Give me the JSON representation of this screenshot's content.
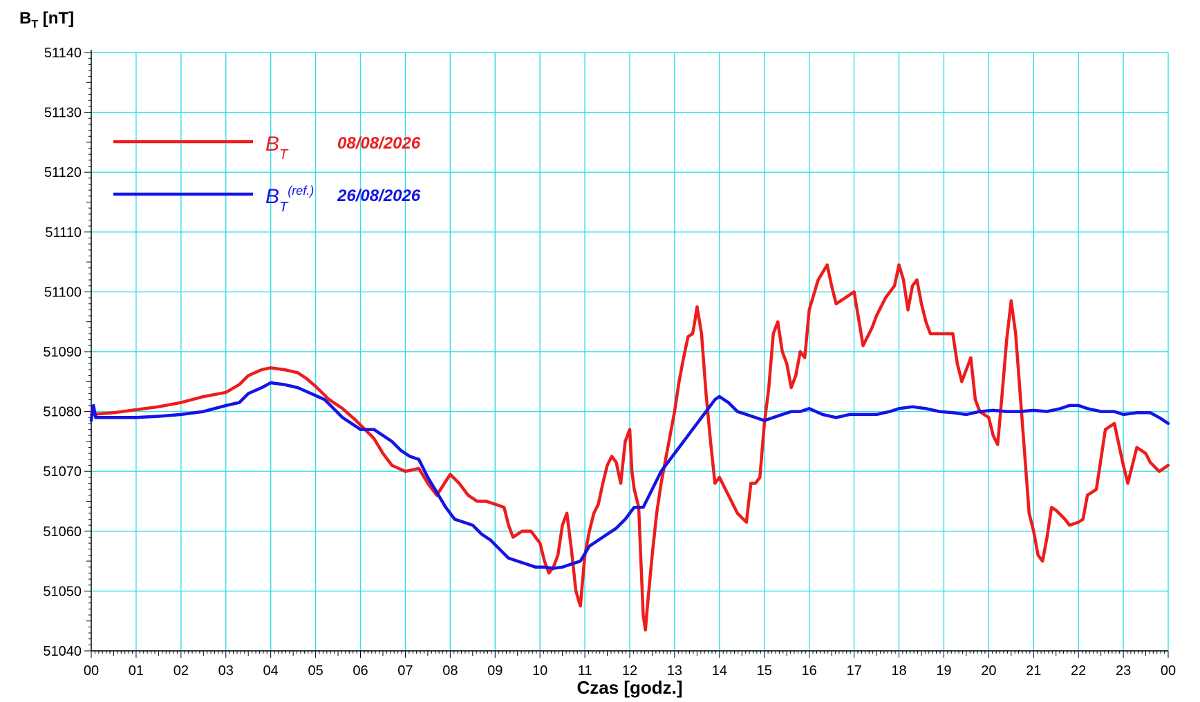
{
  "chart_data": {
    "type": "line",
    "ylabel_main": "B",
    "ylabel_sub": "T",
    "ylabel_unit": " [nT]",
    "xlabel": "Czas [godz.]",
    "xlim": [
      0,
      24
    ],
    "ylim": [
      51040,
      51140
    ],
    "y_ticks": [
      "51040",
      "51050",
      "51060",
      "51070",
      "51080",
      "51090",
      "51100",
      "51110",
      "51120",
      "51130",
      "51140"
    ],
    "x_ticks": [
      "00",
      "01",
      "02",
      "03",
      "04",
      "05",
      "06",
      "07",
      "08",
      "09",
      "10",
      "11",
      "12",
      "13",
      "14",
      "15",
      "16",
      "17",
      "18",
      "19",
      "20",
      "21",
      "22",
      "23",
      "00"
    ],
    "grid": true,
    "grid_color": "#33dde8",
    "legend_position": "top-left",
    "legend": [
      {
        "symbol": "B",
        "sub": "T",
        "sup": "",
        "date": "08/08/2026",
        "color": "#ee1c1c"
      },
      {
        "symbol": "B",
        "sub": "T",
        "sup": "(ref.)",
        "date": "26/08/2026",
        "color": "#1414e6"
      }
    ],
    "series": [
      {
        "color": "#ee1c1c",
        "points": [
          [
            0,
            51079.5
          ],
          [
            0.5,
            51079.8
          ],
          [
            1,
            51080.3
          ],
          [
            1.5,
            51080.8
          ],
          [
            2,
            51081.5
          ],
          [
            2.5,
            51082.5
          ],
          [
            3,
            51083.2
          ],
          [
            3.3,
            51084.5
          ],
          [
            3.5,
            51086
          ],
          [
            3.8,
            51087
          ],
          [
            4.0,
            51087.3
          ],
          [
            4.3,
            51087
          ],
          [
            4.6,
            51086.5
          ],
          [
            4.8,
            51085.5
          ],
          [
            5.0,
            51084.2
          ],
          [
            5.3,
            51082
          ],
          [
            5.6,
            51080.5
          ],
          [
            5.9,
            51078.5
          ],
          [
            6.1,
            51077
          ],
          [
            6.3,
            51075.5
          ],
          [
            6.5,
            51073
          ],
          [
            6.7,
            51071
          ],
          [
            7.0,
            51070
          ],
          [
            7.3,
            51070.5
          ],
          [
            7.5,
            51068
          ],
          [
            7.7,
            51066
          ],
          [
            8.0,
            51069.5
          ],
          [
            8.2,
            51068
          ],
          [
            8.4,
            51066
          ],
          [
            8.6,
            51065
          ],
          [
            8.8,
            51065
          ],
          [
            9.0,
            51064.5
          ],
          [
            9.2,
            51064
          ],
          [
            9.3,
            51061
          ],
          [
            9.4,
            51059
          ],
          [
            9.6,
            51060
          ],
          [
            9.8,
            51060
          ],
          [
            10.0,
            51058
          ],
          [
            10.1,
            51055
          ],
          [
            10.2,
            51053
          ],
          [
            10.3,
            51054
          ],
          [
            10.4,
            51056
          ],
          [
            10.5,
            51061
          ],
          [
            10.6,
            51063
          ],
          [
            10.7,
            51057
          ],
          [
            10.8,
            51050
          ],
          [
            10.9,
            51047.5
          ],
          [
            11.0,
            51056
          ],
          [
            11.1,
            51060
          ],
          [
            11.2,
            51063
          ],
          [
            11.3,
            51064.5
          ],
          [
            11.4,
            51068
          ],
          [
            11.5,
            51071
          ],
          [
            11.6,
            51072.5
          ],
          [
            11.7,
            51071.5
          ],
          [
            11.8,
            51068
          ],
          [
            11.9,
            51075
          ],
          [
            12.0,
            51077
          ],
          [
            12.05,
            51070
          ],
          [
            12.1,
            51067
          ],
          [
            12.2,
            51064
          ],
          [
            12.25,
            51055
          ],
          [
            12.3,
            51046
          ],
          [
            12.35,
            51043.5
          ],
          [
            12.4,
            51048
          ],
          [
            12.5,
            51056
          ],
          [
            12.6,
            51063
          ],
          [
            12.7,
            51068
          ],
          [
            12.8,
            51072
          ],
          [
            12.9,
            51076
          ],
          [
            13.0,
            51080
          ],
          [
            13.1,
            51085
          ],
          [
            13.2,
            51089
          ],
          [
            13.3,
            51092.5
          ],
          [
            13.4,
            51093
          ],
          [
            13.45,
            51095
          ],
          [
            13.5,
            51097.5
          ],
          [
            13.6,
            51093
          ],
          [
            13.7,
            51083
          ],
          [
            13.8,
            51075
          ],
          [
            13.9,
            51068
          ],
          [
            14.0,
            51069
          ],
          [
            14.2,
            51066
          ],
          [
            14.4,
            51063
          ],
          [
            14.6,
            51061.5
          ],
          [
            14.7,
            51068
          ],
          [
            14.8,
            51068
          ],
          [
            14.9,
            51069
          ],
          [
            15.0,
            51078
          ],
          [
            15.1,
            51084
          ],
          [
            15.2,
            51093
          ],
          [
            15.3,
            51095
          ],
          [
            15.4,
            51090
          ],
          [
            15.5,
            51088
          ],
          [
            15.6,
            51084
          ],
          [
            15.7,
            51086
          ],
          [
            15.8,
            51090
          ],
          [
            15.9,
            51089
          ],
          [
            16.0,
            51097
          ],
          [
            16.2,
            51102
          ],
          [
            16.4,
            51104.5
          ],
          [
            16.5,
            51101
          ],
          [
            16.6,
            51098
          ],
          [
            16.8,
            51099
          ],
          [
            17.0,
            51100
          ],
          [
            17.2,
            51091
          ],
          [
            17.4,
            51094
          ],
          [
            17.5,
            51096
          ],
          [
            17.7,
            51099
          ],
          [
            17.9,
            51101
          ],
          [
            18.0,
            51104.5
          ],
          [
            18.1,
            51102
          ],
          [
            18.2,
            51097
          ],
          [
            18.3,
            51101
          ],
          [
            18.4,
            51102
          ],
          [
            18.5,
            51098
          ],
          [
            18.6,
            51095
          ],
          [
            18.7,
            51093
          ],
          [
            18.8,
            51093
          ],
          [
            19.0,
            51093
          ],
          [
            19.2,
            51093
          ],
          [
            19.3,
            51088
          ],
          [
            19.4,
            51085
          ],
          [
            19.5,
            51087
          ],
          [
            19.6,
            51089
          ],
          [
            19.7,
            51082
          ],
          [
            19.8,
            51080
          ],
          [
            20.0,
            51079
          ],
          [
            20.1,
            51076
          ],
          [
            20.2,
            51074.5
          ],
          [
            20.3,
            51083
          ],
          [
            20.4,
            51092
          ],
          [
            20.5,
            51098.5
          ],
          [
            20.6,
            51093
          ],
          [
            20.7,
            51083
          ],
          [
            20.8,
            51073
          ],
          [
            20.9,
            51063
          ],
          [
            21.0,
            51060
          ],
          [
            21.1,
            51056
          ],
          [
            21.2,
            51055
          ],
          [
            21.3,
            51059
          ],
          [
            21.4,
            51064
          ],
          [
            21.5,
            51063.5
          ],
          [
            21.7,
            51062
          ],
          [
            21.8,
            51061
          ],
          [
            22.0,
            51061.5
          ],
          [
            22.1,
            51062
          ],
          [
            22.2,
            51066
          ],
          [
            22.4,
            51067
          ],
          [
            22.5,
            51072
          ],
          [
            22.6,
            51077
          ],
          [
            22.8,
            51078
          ],
          [
            23.0,
            51071
          ],
          [
            23.1,
            51068
          ],
          [
            23.3,
            51074
          ],
          [
            23.5,
            51073
          ],
          [
            23.6,
            51071.5
          ],
          [
            23.8,
            51070
          ],
          [
            24.0,
            51071
          ]
        ]
      },
      {
        "color": "#1414e6",
        "points": [
          [
            0,
            51078.5
          ],
          [
            0.05,
            51081
          ],
          [
            0.1,
            51079
          ],
          [
            0.5,
            51079
          ],
          [
            1,
            51079
          ],
          [
            1.5,
            51079.2
          ],
          [
            2,
            51079.5
          ],
          [
            2.5,
            51080
          ],
          [
            3,
            51081
          ],
          [
            3.3,
            51081.5
          ],
          [
            3.5,
            51083
          ],
          [
            3.8,
            51084
          ],
          [
            4.0,
            51084.8
          ],
          [
            4.3,
            51084.5
          ],
          [
            4.6,
            51084
          ],
          [
            4.9,
            51083
          ],
          [
            5.2,
            51082
          ],
          [
            5.4,
            51080.5
          ],
          [
            5.6,
            51079
          ],
          [
            5.8,
            51078
          ],
          [
            6.0,
            51077
          ],
          [
            6.3,
            51077
          ],
          [
            6.5,
            51076
          ],
          [
            6.7,
            51075
          ],
          [
            6.9,
            51073.5
          ],
          [
            7.1,
            51072.5
          ],
          [
            7.3,
            51072
          ],
          [
            7.5,
            51069
          ],
          [
            7.7,
            51066.5
          ],
          [
            7.9,
            51064
          ],
          [
            8.1,
            51062
          ],
          [
            8.3,
            51061.5
          ],
          [
            8.5,
            51061
          ],
          [
            8.7,
            51059.5
          ],
          [
            8.9,
            51058.5
          ],
          [
            9.1,
            51057
          ],
          [
            9.3,
            51055.5
          ],
          [
            9.5,
            51055
          ],
          [
            9.7,
            51054.5
          ],
          [
            9.9,
            51054
          ],
          [
            10.1,
            51054
          ],
          [
            10.3,
            51053.8
          ],
          [
            10.5,
            51054
          ],
          [
            10.7,
            51054.5
          ],
          [
            10.9,
            51055
          ],
          [
            11.1,
            51057.5
          ],
          [
            11.3,
            51058.5
          ],
          [
            11.5,
            51059.5
          ],
          [
            11.7,
            51060.5
          ],
          [
            11.9,
            51062
          ],
          [
            12.1,
            51064
          ],
          [
            12.3,
            51064
          ],
          [
            12.5,
            51067
          ],
          [
            12.7,
            51070
          ],
          [
            12.9,
            51072
          ],
          [
            13.1,
            51074
          ],
          [
            13.3,
            51076
          ],
          [
            13.5,
            51078
          ],
          [
            13.7,
            51080
          ],
          [
            13.9,
            51082
          ],
          [
            14.0,
            51082.5
          ],
          [
            14.2,
            51081.5
          ],
          [
            14.4,
            51080
          ],
          [
            14.6,
            51079.5
          ],
          [
            14.8,
            51079
          ],
          [
            15.0,
            51078.5
          ],
          [
            15.2,
            51079
          ],
          [
            15.4,
            51079.5
          ],
          [
            15.6,
            51080
          ],
          [
            15.8,
            51080
          ],
          [
            16.0,
            51080.5
          ],
          [
            16.3,
            51079.5
          ],
          [
            16.6,
            51079
          ],
          [
            16.9,
            51079.5
          ],
          [
            17.2,
            51079.5
          ],
          [
            17.5,
            51079.5
          ],
          [
            17.8,
            51080
          ],
          [
            18.0,
            51080.5
          ],
          [
            18.3,
            51080.8
          ],
          [
            18.6,
            51080.5
          ],
          [
            18.9,
            51080
          ],
          [
            19.2,
            51079.8
          ],
          [
            19.5,
            51079.5
          ],
          [
            19.8,
            51080
          ],
          [
            20.1,
            51080.2
          ],
          [
            20.4,
            51080
          ],
          [
            20.7,
            51080
          ],
          [
            21.0,
            51080.2
          ],
          [
            21.3,
            51080
          ],
          [
            21.6,
            51080.5
          ],
          [
            21.8,
            51081
          ],
          [
            22.0,
            51081
          ],
          [
            22.2,
            51080.5
          ],
          [
            22.5,
            51080
          ],
          [
            22.8,
            51080
          ],
          [
            23.0,
            51079.5
          ],
          [
            23.3,
            51079.8
          ],
          [
            23.6,
            51079.8
          ],
          [
            23.8,
            51079
          ],
          [
            24.0,
            51078
          ]
        ]
      }
    ]
  }
}
